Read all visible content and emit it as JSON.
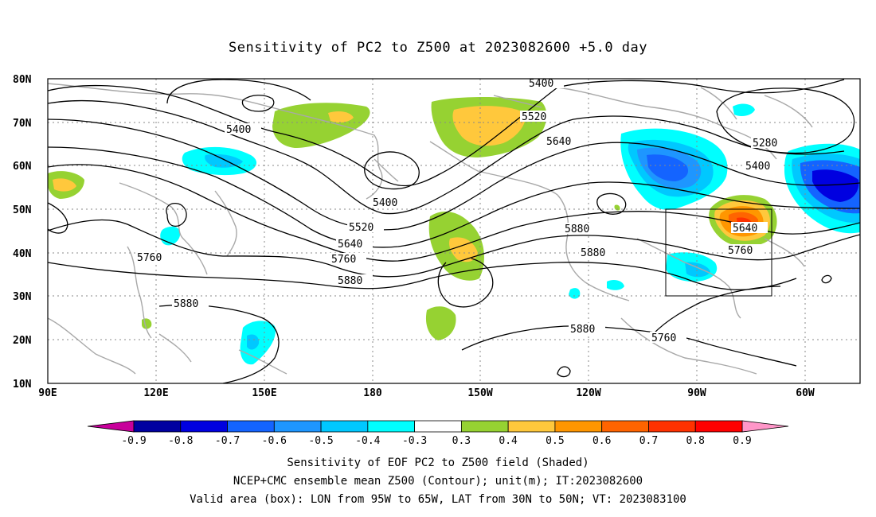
{
  "title": "Sensitivity of PC2 to Z500 at 2023082600 +5.0 day",
  "lat_ticks": [
    "80N",
    "70N",
    "60N",
    "50N",
    "40N",
    "30N",
    "20N",
    "10N"
  ],
  "lon_ticks": [
    "90E",
    "120E",
    "150E",
    "180",
    "150W",
    "120W",
    "90W",
    "60W"
  ],
  "contour_labels": [
    {
      "id": "c5400a",
      "text": "5400"
    },
    {
      "id": "c5400b",
      "text": "5400"
    },
    {
      "id": "c5520a",
      "text": "5520"
    },
    {
      "id": "c5640a",
      "text": "5640"
    },
    {
      "id": "c5280",
      "text": "5280"
    },
    {
      "id": "c5400c",
      "text": "5400"
    },
    {
      "id": "c5400d",
      "text": "5400"
    },
    {
      "id": "c5520b",
      "text": "5520"
    },
    {
      "id": "c5640b",
      "text": "5640"
    },
    {
      "id": "c5760a",
      "text": "5760"
    },
    {
      "id": "c5880a",
      "text": "5880"
    },
    {
      "id": "c5760b",
      "text": "5760"
    },
    {
      "id": "c5880b",
      "text": "5880"
    },
    {
      "id": "c5880c",
      "text": "5880"
    },
    {
      "id": "c5640c",
      "text": "5640"
    },
    {
      "id": "c5760c",
      "text": "5760"
    },
    {
      "id": "c5880d",
      "text": "5880"
    },
    {
      "id": "c5880e",
      "text": "5880"
    },
    {
      "id": "c5760d",
      "text": "5760"
    }
  ],
  "colorbar": {
    "labels": [
      "-0.9",
      "-0.8",
      "-0.7",
      "-0.6",
      "-0.5",
      "-0.4",
      "-0.3",
      "0.3",
      "0.4",
      "0.5",
      "0.6",
      "0.7",
      "0.8",
      "0.9"
    ],
    "colors": [
      "#0000a0",
      "#0000e0",
      "#1464ff",
      "#1e96ff",
      "#00c8ff",
      "#00ffff",
      "#ffffff",
      "#96d232",
      "#ffc83c",
      "#ff9600",
      "#ff6400",
      "#ff3200",
      "#ff0000"
    ],
    "left_extend_color": "#c8009b",
    "right_extend_color": "#ff96c8"
  },
  "footer": {
    "line1": "Sensitivity of EOF PC2 to Z500 field (Shaded)",
    "line2": "NCEP+CMC ensemble mean Z500 (Contour); unit(m); IT:2023082600",
    "line3": "Valid area (box): LON from 95W to 65W, LAT from 30N to 50N; VT: 2023083100"
  }
}
